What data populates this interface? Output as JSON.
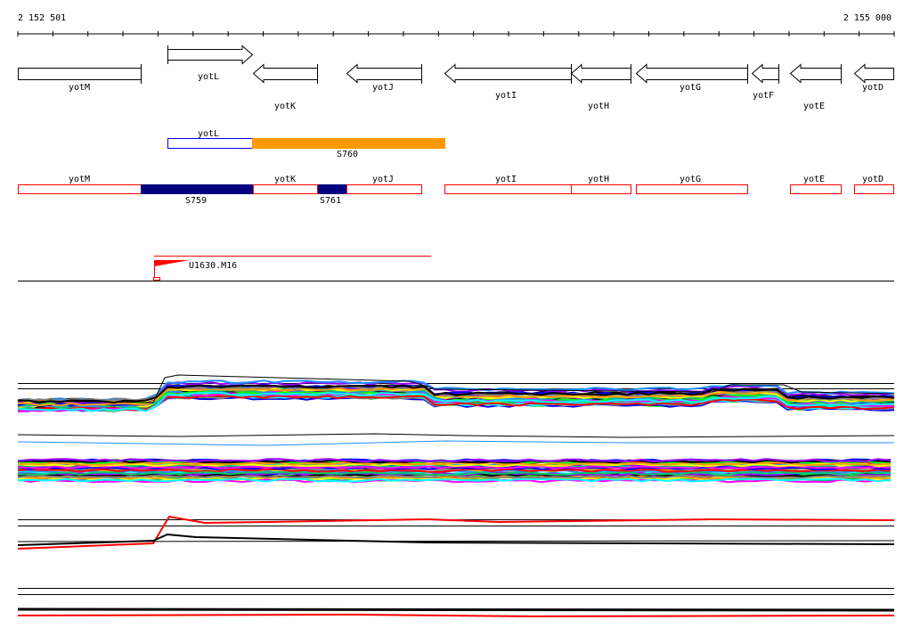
{
  "ruler": {
    "start_label": "2 152 501",
    "end_label": "2 155 000"
  },
  "genes_track": [
    {
      "name": "yotM",
      "strand": "none"
    },
    {
      "name": "yotL",
      "strand": "+"
    },
    {
      "name": "yotK",
      "strand": "-"
    },
    {
      "name": "yotJ",
      "strand": "-"
    },
    {
      "name": "yotI",
      "strand": "-"
    },
    {
      "name": "yotH",
      "strand": "-"
    },
    {
      "name": "yotG",
      "strand": "-"
    },
    {
      "name": "yotF",
      "strand": "-"
    },
    {
      "name": "yotE",
      "strand": "-"
    },
    {
      "name": "yotD",
      "strand": "-"
    }
  ],
  "segment_track_1": {
    "gene": "yotL",
    "segment": "S760",
    "segment_color": "#ff9900",
    "gene_outline_color": "#0000ff"
  },
  "segment_track_2": {
    "genes": [
      "yotM",
      "yotK",
      "yotJ",
      "yotI",
      "yotH",
      "yotG",
      "yotE",
      "yotD"
    ],
    "segments": [
      "S759",
      "S761"
    ],
    "gene_outline_color": "#ff0000",
    "segment_color": "#000080"
  },
  "feature": {
    "label": "U1630.M16",
    "color": "#ff0000"
  },
  "colors": {
    "series": [
      "#ff0000",
      "#00ff00",
      "#0000ff",
      "#ff00ff",
      "#00ffff",
      "#ffff00",
      "#ff9900",
      "#808080",
      "#000000",
      "#9900ff",
      "#00cc66",
      "#1e90ff"
    ]
  }
}
